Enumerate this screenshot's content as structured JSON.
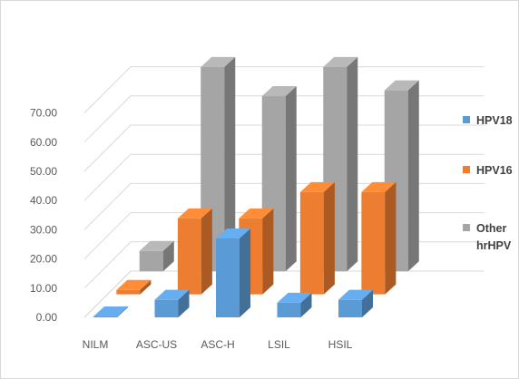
{
  "chart_data": {
    "type": "bar",
    "subtype": "3d-clustered-column",
    "title": "",
    "xlabel": "",
    "ylabel": "",
    "categories": [
      "NILM",
      "ASC-US",
      "ASC-H",
      "LSIL",
      "HSIL"
    ],
    "series": [
      {
        "name": "HPV18",
        "values": [
          0.3,
          6.0,
          27.0,
          5.0,
          6.0
        ],
        "color": "#5b9bd5"
      },
      {
        "name": "HPV16",
        "values": [
          1.5,
          26.0,
          26.0,
          35.0,
          35.0
        ],
        "color": "#ed7d31"
      },
      {
        "name": "Other hrHPV",
        "values": [
          7.0,
          70.0,
          60.0,
          70.0,
          62.0
        ],
        "color": "#a5a5a5"
      }
    ],
    "ylim": [
      0,
      70
    ],
    "yticks": [
      "0.00",
      "10.00",
      "20.00",
      "30.00",
      "40.00",
      "50.00",
      "60.00",
      "70.00"
    ],
    "grid": true,
    "legend": {
      "position": "right",
      "entries": [
        {
          "label_lines": [
            "HPV18"
          ]
        },
        {
          "label_lines": [
            "HPV16"
          ]
        },
        {
          "label_lines": [
            "Other",
            "hrHPV"
          ]
        }
      ]
    }
  }
}
